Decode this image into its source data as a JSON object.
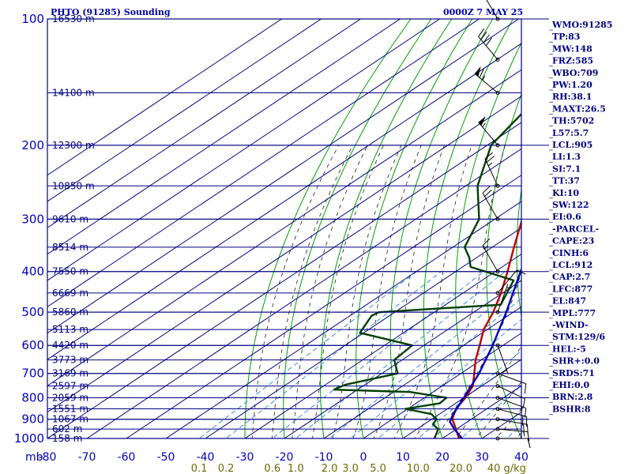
{
  "header": {
    "station": "PHTO (91285) Sounding",
    "time": "0000Z  7 MAY 25"
  },
  "chart_data": {
    "type": "line",
    "title": "PHTO (91285) Sounding",
    "xlabel": "",
    "ylabel": "mb",
    "pressure_levels": [
      100,
      200,
      300,
      400,
      500,
      600,
      700,
      800,
      900,
      1000
    ],
    "pressure_tick_labels": [
      "100",
      "200",
      "300",
      "400",
      "500",
      "600",
      "700",
      "800",
      "900",
      "1000"
    ],
    "temperature_ticks": [
      -80,
      -70,
      -60,
      -50,
      -40,
      -30,
      -20,
      -10,
      0,
      10,
      20,
      30,
      40
    ],
    "temperature_tick_labels": [
      "-80",
      "-70",
      "-60",
      "-50",
      "-40",
      "-30",
      "-20",
      "-10",
      "0",
      "10",
      "20",
      "30",
      "40"
    ],
    "y_axis_unit_label": "mb",
    "xlim": [
      -80,
      40
    ],
    "ylim": [
      1000,
      100
    ],
    "height_labels": [
      {
        "p": 100,
        "label": "16530 m"
      },
      {
        "p": 150,
        "label": "14100 m"
      },
      {
        "p": 200,
        "label": "12300 m"
      },
      {
        "p": 250,
        "label": "10850 m"
      },
      {
        "p": 300,
        "label": "9610 m"
      },
      {
        "p": 350,
        "label": "8514 m"
      },
      {
        "p": 400,
        "label": "7550 m"
      },
      {
        "p": 450,
        "label": "6669 m"
      },
      {
        "p": 500,
        "label": "5860 m"
      },
      {
        "p": 550,
        "label": "5113 m"
      },
      {
        "p": 600,
        "label": "4420 m"
      },
      {
        "p": 650,
        "label": "3773 m"
      },
      {
        "p": 700,
        "label": "3169 m"
      },
      {
        "p": 750,
        "label": "2597 m"
      },
      {
        "p": 800,
        "label": "2059 m"
      },
      {
        "p": 850,
        "label": "1551 m"
      },
      {
        "p": 900,
        "label": "1067 m"
      },
      {
        "p": 950,
        "label": "602 m"
      },
      {
        "p": 1000,
        "label": "158 m"
      }
    ],
    "mixing_ratio_labels": [
      "0.1",
      "0.2",
      "0.6",
      "1.0",
      "2.0",
      "3.0",
      "5.0",
      "10.0",
      "20.0",
      "40 g/kg"
    ],
    "series": [
      {
        "name": "Temperature",
        "color": "#c00000",
        "points": [
          [
            1004,
            25.4
          ],
          [
            1000,
            24.2
          ],
          [
            925,
            17.6
          ],
          [
            900,
            15.2
          ],
          [
            850,
            12.2
          ],
          [
            800,
            10.4
          ],
          [
            750,
            7.8
          ],
          [
            700,
            3.4
          ],
          [
            650,
            -1.4
          ],
          [
            600,
            -5.9
          ],
          [
            550,
            -10.9
          ],
          [
            500,
            -15.1
          ],
          [
            450,
            -20.4
          ],
          [
            400,
            -26.9
          ],
          [
            350,
            -34.5
          ],
          [
            300,
            -43.1
          ],
          [
            250,
            -53.3
          ],
          [
            200,
            -63.5
          ],
          [
            150,
            -71.2
          ],
          [
            100,
            -79.0
          ]
        ]
      },
      {
        "name": "Dewpoint",
        "color": "#004000",
        "points": [
          [
            1004,
            18.0
          ],
          [
            1000,
            18.0
          ],
          [
            950,
            15.4
          ],
          [
            925,
            12.2
          ],
          [
            900,
            11.2
          ],
          [
            875,
            8.0
          ],
          [
            850,
            -0.6
          ],
          [
            825,
            6.0
          ],
          [
            800,
            5.6
          ],
          [
            775,
            -5.8
          ],
          [
            765,
            -26.0
          ],
          [
            745,
            -25.0
          ],
          [
            700,
            -16.0
          ],
          [
            650,
            -22.0
          ],
          [
            600,
            -23.0
          ],
          [
            560,
            -41.0
          ],
          [
            510,
            -44.5
          ],
          [
            500,
            -44.0
          ],
          [
            480,
            -16.0
          ],
          [
            420,
            -22.0
          ],
          [
            390,
            -38.0
          ],
          [
            370,
            -42.0
          ],
          [
            350,
            -47.0
          ],
          [
            300,
            -54.0
          ],
          [
            250,
            -67.0
          ],
          [
            200,
            -79.0
          ],
          [
            150,
            -86.0
          ]
        ]
      },
      {
        "name": "Parcel",
        "color": "#0000c0",
        "points": [
          [
            1004,
            25.4
          ],
          [
            950,
            19.5
          ],
          [
            912,
            15.5
          ],
          [
            877,
            13.6
          ],
          [
            800,
            10.0
          ],
          [
            700,
            4.6
          ],
          [
            600,
            -2.6
          ],
          [
            500,
            -11.8
          ],
          [
            400,
            -23.6
          ],
          [
            300,
            -38.0
          ],
          [
            200,
            -54.0
          ],
          [
            150,
            -66.5
          ]
        ]
      }
    ]
  },
  "winds": [
    {
      "p": 1000,
      "dir": 90,
      "spd": 10
    },
    {
      "p": 950,
      "dir": 95,
      "spd": 15
    },
    {
      "p": 900,
      "dir": 100,
      "spd": 20
    },
    {
      "p": 850,
      "dir": 105,
      "spd": 20
    },
    {
      "p": 800,
      "dir": 110,
      "spd": 15
    },
    {
      "p": 750,
      "dir": 115,
      "spd": 10
    },
    {
      "p": 700,
      "dir": 110,
      "spd": 10
    },
    {
      "p": 600,
      "dir": 160,
      "spd": 5
    },
    {
      "p": 500,
      "dir": 20,
      "spd": 5
    },
    {
      "p": 450,
      "dir": 40,
      "spd": 10
    },
    {
      "p": 400,
      "dir": 330,
      "spd": 15
    },
    {
      "p": 300,
      "dir": 330,
      "spd": 20
    },
    {
      "p": 250,
      "dir": 335,
      "spd": 25
    },
    {
      "p": 200,
      "dir": 320,
      "spd": 55
    },
    {
      "p": 150,
      "dir": 310,
      "spd": 65
    },
    {
      "p": 125,
      "dir": 320,
      "spd": 40
    },
    {
      "p": 100,
      "dir": 330,
      "spd": 30
    }
  ],
  "indices": [
    "WMO:91285",
    "TP:83",
    "MW:148",
    "FRZ:585",
    "WBO:709",
    "PW:1.20",
    "RH:38.1",
    "MAXT:26.5",
    "TH:5702",
    "L57:5.7",
    "LCL:905",
    "LI:1.3",
    "SI:7.1",
    "TT:37",
    "KI:10",
    "SW:122",
    "EI:0.6",
    "-PARCEL-",
    "CAPE:23",
    "CINH:6",
    "LCL:912",
    "CAP:2.7",
    "LFC:877",
    "EL:847",
    "MPL:777",
    "-WIND-",
    "STM:129/6",
    "HEL:-5",
    "SHR+:0.0",
    "SRDS:71",
    "EHI:0.0",
    "BRN:2.8",
    "BSHR:8"
  ],
  "colors": {
    "isobar": "#000080",
    "isotherm": "#000080",
    "dry_adiabat": "#00a000",
    "moist_adiabat": "#202020",
    "mixing_ratio": "#3a8de0",
    "temperature": "#c00000",
    "dewpoint": "#004000",
    "parcel": "#0000c0",
    "wind": "#000000",
    "text": "#000080"
  }
}
